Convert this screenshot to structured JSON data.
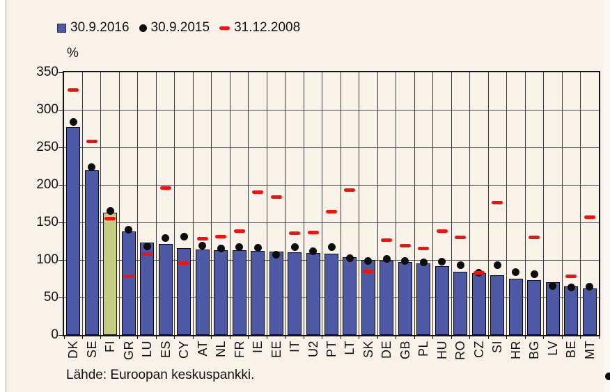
{
  "legend": {
    "items": [
      {
        "label": "30.9.2016",
        "marker": "square-icon",
        "color": "#4e59a5"
      },
      {
        "label": "30.9.2015",
        "marker": "circle-icon",
        "color": "#0d0d0d"
      },
      {
        "label": "31.12.2008",
        "marker": "dash-icon",
        "color": "#ee1310"
      }
    ]
  },
  "unit_label": "%",
  "source_note": "Lähde: Euroopan keskuspankki.",
  "colors": {
    "background": "#f8f2e9",
    "bar": "#4e59a5",
    "bar_highlight": "#c3cd81",
    "point": "#0d0d0d",
    "dash": "#ee1310",
    "grid": "#4a4a4a",
    "border": "#141414"
  },
  "chart_data": {
    "type": "bar",
    "title": "",
    "xlabel": "",
    "ylabel": "%",
    "ylim": [
      0,
      350
    ],
    "yticks": [
      350,
      300,
      250,
      200,
      150,
      100,
      50,
      0
    ],
    "grid": true,
    "legend_position": "top",
    "highlight_category": "FI",
    "categories": [
      "DK",
      "SE",
      "FI",
      "GR",
      "LU",
      "ES",
      "CY",
      "AT",
      "NL",
      "FR",
      "IE",
      "EE",
      "IT",
      "U2",
      "PT",
      "LT",
      "SK",
      "DE",
      "GB",
      "PL",
      "HU",
      "RO",
      "CZ",
      "SI",
      "HR",
      "BG",
      "LV",
      "BE",
      "MT"
    ],
    "series": [
      {
        "name": "30.9.2016",
        "style": "bar",
        "values": [
          277,
          219,
          163,
          138,
          123,
          121,
          116,
          114,
          113,
          113,
          112,
          111,
          110,
          109,
          108,
          104,
          100,
          99,
          97,
          95,
          92,
          84,
          82,
          80,
          75,
          73,
          70,
          65,
          62
        ]
      },
      {
        "name": "30.9.2015",
        "style": "point",
        "values": [
          284,
          224,
          165,
          140,
          118,
          129,
          131,
          119,
          115,
          117,
          116,
          107,
          117,
          112,
          117,
          102,
          99,
          101,
          99,
          97,
          98,
          93,
          83,
          93,
          84,
          81,
          65,
          63,
          64
        ]
      },
      {
        "name": "31.12.2008",
        "style": "dash",
        "values": [
          326,
          258,
          155,
          78,
          108,
          196,
          96,
          128,
          131,
          138,
          190,
          184,
          136,
          137,
          164,
          193,
          85,
          126,
          119,
          115,
          138,
          130,
          83,
          176,
          null,
          130,
          null,
          78,
          157
        ]
      }
    ]
  }
}
